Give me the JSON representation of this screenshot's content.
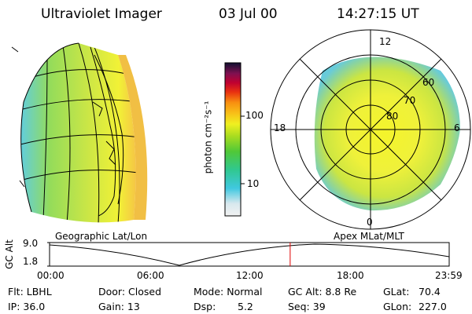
{
  "header": {
    "instrument": "Ultraviolet Imager",
    "date": "03 Jul 00",
    "time": "14:27:15 UT"
  },
  "colorbar": {
    "unit": "photon cm⁻²s⁻¹",
    "ticks": [
      "100",
      "10"
    ]
  },
  "polar_plot": {
    "mlt_labels": {
      "top": "12",
      "left": "18",
      "right": "6",
      "bottom": "0"
    },
    "lat_labels": [
      "60",
      "70",
      "80"
    ],
    "title": "Apex MLat/MLT"
  },
  "globe": {
    "title": "Geographic Lat/Lon"
  },
  "timeline": {
    "ylabel": "GC Alt",
    "ymax": "9.0",
    "ymin": "1.8",
    "x_ticks": [
      "00:00",
      "06:00",
      "12:00",
      "18:00",
      "23:59"
    ],
    "current_marker_hours": 14.45
  },
  "info": {
    "row1": {
      "flt": "Flt: LBHL",
      "door": "Door: Closed",
      "mode": "Mode: Normal",
      "gcalt": "GC Alt: 8.8 Re",
      "glat_label": "GLat:",
      "glat_value": "70.4"
    },
    "row2": {
      "ip": "IP: 36.0",
      "gain": "Gain: 13",
      "dsp_label": "Dsp:",
      "dsp_value": "5.2",
      "seq": "Seq: 39",
      "glon_label": "GLon:",
      "glon_value": "227.0"
    }
  }
}
